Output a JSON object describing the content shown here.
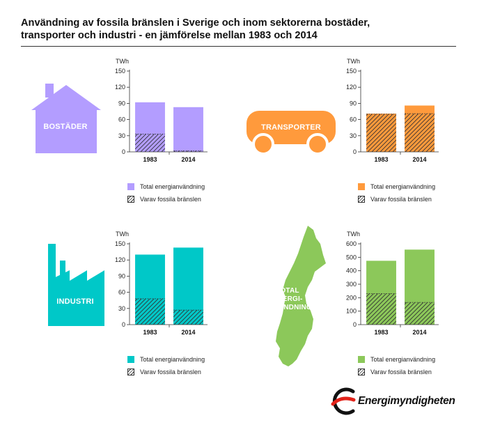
{
  "title": {
    "line1": "Användning av fossila bränslen i Sverige och inom sektorerna bostäder,",
    "line2": "transporter och industri - en jämförelse mellan 1983 och 2014"
  },
  "colors": {
    "bostader": "#b39dff",
    "transporter": "#ff9a3c",
    "industri": "#00c8c8",
    "total": "#8cc85a"
  },
  "icons": {
    "bostader": {
      "name": "house-icon",
      "label": "BOSTÄDER"
    },
    "transporter": {
      "name": "bus-icon",
      "label": "TRANSPORTER"
    },
    "industri": {
      "name": "factory-icon",
      "label": "INDUSTRI"
    },
    "total": {
      "name": "sweden-map-icon",
      "label_line1": "TOTAL",
      "label_line2": "ENERGI-",
      "label_line3": "ANVÄNDNING"
    }
  },
  "legend": {
    "total": "Total energianvändning",
    "fossil": "Varav fossila bränslen"
  },
  "logo": {
    "name": "energimyndigheten-logo",
    "text": "Energimyndigheten"
  },
  "chart_data": [
    {
      "key": "bostader",
      "type": "bar",
      "ylabel": "TWh",
      "categories": [
        "1983",
        "2014"
      ],
      "ylim": [
        0,
        150
      ],
      "yticks": [
        0,
        30,
        60,
        90,
        120,
        150
      ],
      "series": [
        {
          "name": "Total energianvändning",
          "values": [
            92,
            83
          ]
        },
        {
          "name": "Varav fossila bränslen",
          "values": [
            33,
            2
          ]
        }
      ]
    },
    {
      "key": "transporter",
      "type": "bar",
      "ylabel": "TWh",
      "categories": [
        "1983",
        "2014"
      ],
      "ylim": [
        0,
        150
      ],
      "yticks": [
        0,
        30,
        60,
        90,
        120,
        150
      ],
      "series": [
        {
          "name": "Total energianvändning",
          "values": [
            71,
            86
          ]
        },
        {
          "name": "Varav fossila bränslen",
          "values": [
            70,
            71
          ]
        }
      ]
    },
    {
      "key": "industri",
      "type": "bar",
      "ylabel": "TWh",
      "categories": [
        "1983",
        "2014"
      ],
      "ylim": [
        0,
        150
      ],
      "yticks": [
        0,
        30,
        60,
        90,
        120,
        150
      ],
      "series": [
        {
          "name": "Total energianvändning",
          "values": [
            130,
            143
          ]
        },
        {
          "name": "Varav fossila bränslen",
          "values": [
            48,
            27
          ]
        }
      ]
    },
    {
      "key": "total",
      "type": "bar",
      "ylabel": "TWh",
      "categories": [
        "1983",
        "2014"
      ],
      "ylim": [
        0,
        600
      ],
      "yticks": [
        0,
        100,
        200,
        300,
        400,
        500,
        600
      ],
      "series": [
        {
          "name": "Total energianvändning",
          "values": [
            474,
            557
          ]
        },
        {
          "name": "Varav fossila bränslen",
          "values": [
            230,
            165
          ]
        }
      ]
    }
  ]
}
